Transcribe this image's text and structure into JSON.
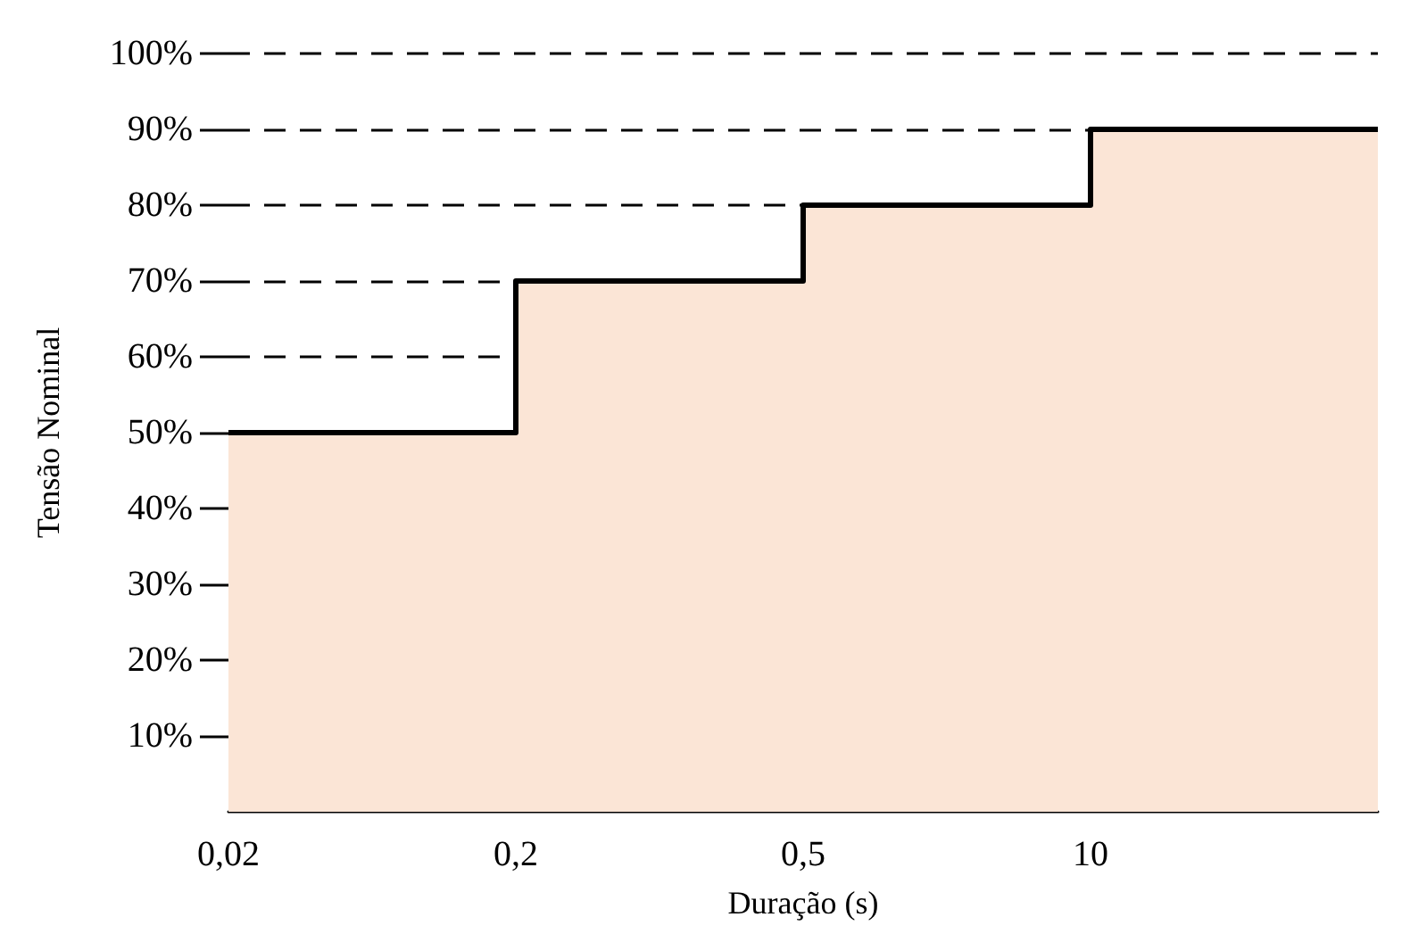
{
  "chart_data": {
    "type": "step",
    "xlabel": "Duração (s)",
    "ylabel": "Tensão Nominal",
    "categories": [
      "0,02",
      "0,2",
      "0,5",
      "10",
      null
    ],
    "series": [
      {
        "type": "area",
        "color": "#fbe5d6",
        "values": [
          50,
          70,
          80,
          90,
          90
        ]
      },
      {
        "type": "step",
        "color": "#000000",
        "values": [
          50,
          70,
          80,
          90,
          90
        ]
      }
    ],
    "ylim": [
      0,
      100
    ],
    "yticks": [
      {
        "value": 10,
        "label": "10%"
      },
      {
        "value": 20,
        "label": "20%"
      },
      {
        "value": 30,
        "label": "30%"
      },
      {
        "value": 40,
        "label": "40%"
      },
      {
        "value": 50,
        "label": "50%"
      },
      {
        "value": 60,
        "label": "60%"
      },
      {
        "value": 70,
        "label": "70%"
      },
      {
        "value": 80,
        "label": "80%"
      },
      {
        "value": 90,
        "label": "90%"
      },
      {
        "value": 100,
        "label": "100%"
      }
    ],
    "grid": "y",
    "marker": "none",
    "line_style": "solid"
  }
}
